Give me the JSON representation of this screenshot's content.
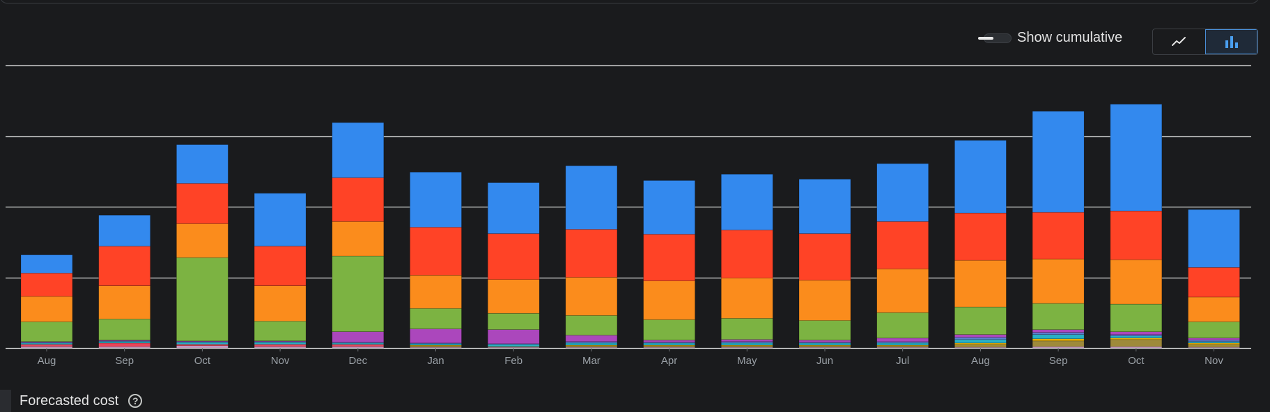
{
  "controls": {
    "cumulative_label": "Show cumulative",
    "cumulative_on": false,
    "active_view": "bar"
  },
  "footer": {
    "title": "Forecasted cost",
    "help_glyph": "?"
  },
  "colors": {
    "background": "#1a1b1d",
    "gridline": "#e0e0e0",
    "axis_label": "#9aa0a6",
    "accent": "#4a90d9"
  },
  "chart_data": {
    "type": "bar",
    "stacked": true,
    "grid": true,
    "categories": [
      "Aug",
      "Sep",
      "Oct",
      "Nov",
      "Dec",
      "Jan",
      "Feb",
      "Mar",
      "Apr",
      "May",
      "Jun",
      "Jul",
      "Aug",
      "Sep",
      "Oct",
      "Nov"
    ],
    "ylim": [
      0,
      4
    ],
    "yticks": [
      0,
      1,
      2,
      3,
      4
    ],
    "series": [
      {
        "color": "#d6a8d0",
        "values": [
          0.02,
          0.02,
          0.03,
          0.02,
          0.02,
          0.01,
          0.01,
          0.01,
          0.01,
          0.01,
          0.01,
          0.01,
          0.01,
          0.02,
          0.02,
          0.01
        ]
      },
      {
        "color": "#e8445a",
        "values": [
          0.03,
          0.05,
          0.02,
          0.03,
          0.03,
          0.0,
          0.0,
          0.0,
          0.0,
          0.0,
          0.0,
          0.0,
          0.0,
          0.0,
          0.0,
          0.0
        ]
      },
      {
        "color": "#9e8a3a",
        "values": [
          0.0,
          0.0,
          0.0,
          0.0,
          0.0,
          0.02,
          0.01,
          0.02,
          0.02,
          0.02,
          0.02,
          0.02,
          0.04,
          0.08,
          0.1,
          0.04
        ]
      },
      {
        "color": "#f2b80a",
        "values": [
          0.0,
          0.0,
          0.0,
          0.0,
          0.0,
          0.01,
          0.0,
          0.01,
          0.01,
          0.01,
          0.01,
          0.01,
          0.02,
          0.03,
          0.02,
          0.02
        ]
      },
      {
        "color": "#2ab0c4",
        "values": [
          0.02,
          0.02,
          0.03,
          0.03,
          0.02,
          0.02,
          0.03,
          0.03,
          0.03,
          0.03,
          0.03,
          0.03,
          0.05,
          0.06,
          0.03,
          0.02
        ]
      },
      {
        "color": "#5b7fd0",
        "values": [
          0.01,
          0.01,
          0.01,
          0.01,
          0.01,
          0.01,
          0.01,
          0.02,
          0.01,
          0.02,
          0.01,
          0.02,
          0.03,
          0.03,
          0.02,
          0.02
        ]
      },
      {
        "color": "#ab47bc",
        "values": [
          0.01,
          0.01,
          0.01,
          0.01,
          0.15,
          0.2,
          0.2,
          0.09,
          0.03,
          0.03,
          0.03,
          0.05,
          0.04,
          0.04,
          0.04,
          0.03
        ]
      },
      {
        "color": "#7cb342",
        "values": [
          0.28,
          0.3,
          1.18,
          0.28,
          1.07,
          0.29,
          0.23,
          0.28,
          0.29,
          0.3,
          0.28,
          0.36,
          0.39,
          0.37,
          0.39,
          0.23
        ]
      },
      {
        "color": "#fb8c1c",
        "values": [
          0.36,
          0.47,
          0.48,
          0.5,
          0.49,
          0.47,
          0.48,
          0.54,
          0.55,
          0.57,
          0.57,
          0.62,
          0.66,
          0.63,
          0.63,
          0.35
        ]
      },
      {
        "color": "#ff4326",
        "values": [
          0.33,
          0.56,
          0.57,
          0.56,
          0.62,
          0.68,
          0.65,
          0.68,
          0.66,
          0.68,
          0.66,
          0.67,
          0.67,
          0.66,
          0.69,
          0.42
        ]
      },
      {
        "color": "#3389ee",
        "values": [
          0.26,
          0.44,
          0.55,
          0.75,
          0.78,
          0.78,
          0.72,
          0.9,
          0.76,
          0.79,
          0.77,
          0.82,
          1.03,
          1.43,
          1.51,
          0.82
        ]
      }
    ]
  }
}
